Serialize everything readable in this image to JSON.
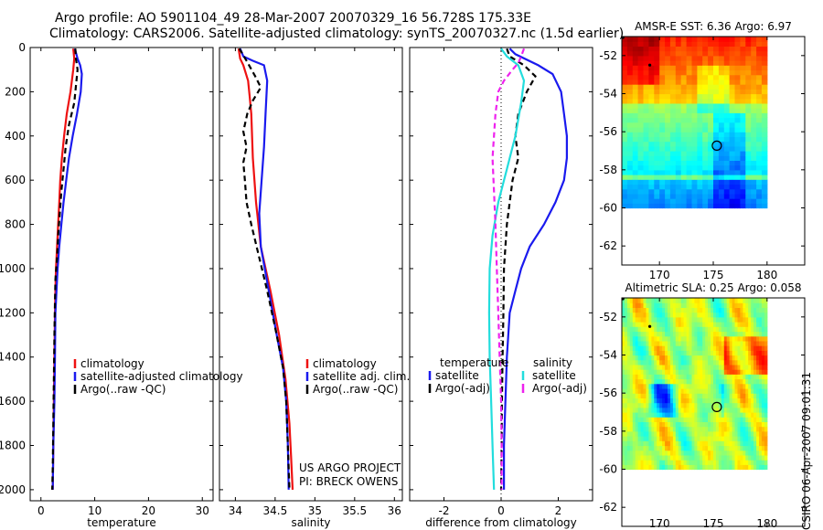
{
  "header": {
    "line1": "Argo profile: AO 5901104_49 28-Mar-2007 20070329_16 56.728S 175.33E",
    "line2": "Climatology: CARS2006. Satellite-adjusted climatology: synTS_20070327.nc (1.5d earlier)"
  },
  "side_label": "CSIRO 06-Apr-2007 09:01:31",
  "credit": [
    "US ARGO PROJECT",
    "PI: BRECK OWENS"
  ],
  "colors": {
    "climatology": "#ee1111",
    "satellite": "#1a1aee",
    "argo": "#000000",
    "satellite_diff": "#22dddd",
    "argo_sal_diff": "#ee22ee"
  },
  "chart_data": [
    {
      "type": "line",
      "id": "temperature",
      "xlabel": "temperature",
      "ylabel": "",
      "xlim": [
        -2,
        32
      ],
      "ylim": [
        2050,
        0
      ],
      "xticks": [
        0,
        10,
        20,
        30
      ],
      "yticks": [
        0,
        200,
        400,
        600,
        800,
        1000,
        1200,
        1400,
        1600,
        1800,
        2000
      ],
      "legend": [
        "climatology",
        "satellite-adjusted climatology",
        "Argo(..raw -QC)"
      ],
      "series": [
        {
          "name": "climatology",
          "color": "#ee1111",
          "dash": "",
          "points": [
            [
              6.0,
              5
            ],
            [
              6.2,
              50
            ],
            [
              6.0,
              100
            ],
            [
              5.5,
              200
            ],
            [
              4.8,
              300
            ],
            [
              4.3,
              400
            ],
            [
              3.9,
              500
            ],
            [
              3.6,
              600
            ],
            [
              3.4,
              700
            ],
            [
              3.2,
              800
            ],
            [
              3.0,
              900
            ],
            [
              2.8,
              1000
            ],
            [
              2.7,
              1100
            ],
            [
              2.6,
              1200
            ],
            [
              2.5,
              1400
            ],
            [
              2.4,
              1600
            ],
            [
              2.3,
              1800
            ],
            [
              2.2,
              2000
            ]
          ]
        },
        {
          "name": "satellite-adjusted climatology",
          "color": "#1a1aee",
          "dash": "",
          "points": [
            [
              6.3,
              5
            ],
            [
              6.8,
              50
            ],
            [
              7.3,
              80
            ],
            [
              7.6,
              120
            ],
            [
              7.4,
              200
            ],
            [
              6.7,
              300
            ],
            [
              5.9,
              400
            ],
            [
              5.2,
              500
            ],
            [
              4.7,
              600
            ],
            [
              4.2,
              700
            ],
            [
              3.8,
              800
            ],
            [
              3.4,
              900
            ],
            [
              3.1,
              1000
            ],
            [
              2.9,
              1100
            ],
            [
              2.7,
              1200
            ],
            [
              2.6,
              1400
            ],
            [
              2.5,
              1600
            ],
            [
              2.3,
              1800
            ],
            [
              2.2,
              2000
            ]
          ]
        },
        {
          "name": "Argo(..raw -QC)",
          "color": "#000000",
          "dash": "6,4",
          "points": [
            [
              6.4,
              5
            ],
            [
              6.5,
              50
            ],
            [
              6.8,
              100
            ],
            [
              6.6,
              150
            ],
            [
              6.2,
              250
            ],
            [
              5.2,
              350
            ],
            [
              4.6,
              450
            ],
            [
              4.2,
              550
            ],
            [
              3.8,
              650
            ],
            [
              3.5,
              750
            ],
            [
              3.2,
              850
            ],
            [
              3.0,
              950
            ],
            [
              2.7,
              1050
            ],
            [
              2.6,
              1150
            ],
            [
              2.5,
              1300
            ],
            [
              2.4,
              1500
            ],
            [
              2.3,
              1700
            ],
            [
              2.2,
              1900
            ],
            [
              2.1,
              2000
            ]
          ]
        }
      ]
    },
    {
      "type": "line",
      "id": "salinity",
      "xlabel": "salinity",
      "xlim": [
        33.8,
        36.1
      ],
      "ylim": [
        2050,
        0
      ],
      "xticks": [
        34,
        34.5,
        35,
        35.5,
        36
      ],
      "xticklabels": [
        "34",
        "34.5",
        "35",
        "35.5",
        "36"
      ],
      "legend": [
        "climatology",
        "satellite adj. clim.",
        "Argo(..raw -QC)"
      ],
      "series": [
        {
          "name": "climatology",
          "color": "#ee1111",
          "dash": "",
          "points": [
            [
              34.04,
              5
            ],
            [
              34.06,
              50
            ],
            [
              34.1,
              80
            ],
            [
              34.16,
              150
            ],
            [
              34.18,
              220
            ],
            [
              34.2,
              300
            ],
            [
              34.22,
              500
            ],
            [
              34.26,
              700
            ],
            [
              34.32,
              900
            ],
            [
              34.44,
              1100
            ],
            [
              34.55,
              1300
            ],
            [
              34.63,
              1500
            ],
            [
              34.68,
              1700
            ],
            [
              34.7,
              1850
            ],
            [
              34.72,
              2000
            ]
          ]
        },
        {
          "name": "satellite adj. clim.",
          "color": "#1a1aee",
          "dash": "",
          "points": [
            [
              34.06,
              5
            ],
            [
              34.1,
              40
            ],
            [
              34.22,
              60
            ],
            [
              34.36,
              80
            ],
            [
              34.4,
              150
            ],
            [
              34.38,
              300
            ],
            [
              34.36,
              450
            ],
            [
              34.33,
              600
            ],
            [
              34.3,
              750
            ],
            [
              34.32,
              900
            ],
            [
              34.42,
              1100
            ],
            [
              34.52,
              1300
            ],
            [
              34.6,
              1450
            ],
            [
              34.64,
              1600
            ],
            [
              34.66,
              1800
            ],
            [
              34.67,
              2000
            ]
          ]
        },
        {
          "name": "Argo(..raw -QC)",
          "color": "#000000",
          "dash": "6,4",
          "points": [
            [
              34.05,
              5
            ],
            [
              34.14,
              60
            ],
            [
              34.25,
              130
            ],
            [
              34.32,
              180
            ],
            [
              34.22,
              240
            ],
            [
              34.15,
              300
            ],
            [
              34.1,
              380
            ],
            [
              34.14,
              450
            ],
            [
              34.1,
              520
            ],
            [
              34.12,
              600
            ],
            [
              34.14,
              700
            ],
            [
              34.2,
              800
            ],
            [
              34.3,
              950
            ],
            [
              34.4,
              1100
            ],
            [
              34.52,
              1300
            ],
            [
              34.6,
              1450
            ],
            [
              34.64,
              1600
            ],
            [
              34.66,
              1800
            ],
            [
              34.68,
              2000
            ]
          ]
        }
      ]
    },
    {
      "type": "line",
      "id": "difference",
      "xlabel": "difference from climatology",
      "xlim": [
        -3.2,
        3.2
      ],
      "ylim": [
        2050,
        0
      ],
      "xticks": [
        -2,
        0,
        2
      ],
      "xticklabels": [
        "-2",
        "0",
        "2"
      ],
      "legend_temperature": {
        "title": "temperature",
        "items": [
          "satellite",
          "Argo(-adj)"
        ]
      },
      "legend_salinity": {
        "title": "salinity",
        "items": [
          "satellite",
          "Argo(-adj)"
        ]
      },
      "series": [
        {
          "name": "temperature satellite",
          "color": "#1a1aee",
          "dash": "",
          "points": [
            [
              0.3,
              5
            ],
            [
              0.5,
              30
            ],
            [
              1.3,
              80
            ],
            [
              1.8,
              120
            ],
            [
              2.1,
              200
            ],
            [
              2.2,
              300
            ],
            [
              2.3,
              400
            ],
            [
              2.3,
              500
            ],
            [
              2.2,
              600
            ],
            [
              1.9,
              700
            ],
            [
              1.5,
              800
            ],
            [
              1.0,
              900
            ],
            [
              0.7,
              1000
            ],
            [
              0.5,
              1100
            ],
            [
              0.3,
              1200
            ],
            [
              0.2,
              1400
            ],
            [
              0.15,
              1600
            ],
            [
              0.1,
              1800
            ],
            [
              0.1,
              2000
            ]
          ]
        },
        {
          "name": "temperature Argo(-adj)",
          "color": "#000000",
          "dash": "6,4",
          "points": [
            [
              0.2,
              5
            ],
            [
              0.3,
              40
            ],
            [
              0.8,
              80
            ],
            [
              1.2,
              130
            ],
            [
              0.9,
              200
            ],
            [
              0.6,
              300
            ],
            [
              0.5,
              400
            ],
            [
              0.6,
              500
            ],
            [
              0.4,
              600
            ],
            [
              0.3,
              700
            ],
            [
              0.2,
              800
            ],
            [
              0.15,
              900
            ],
            [
              0.1,
              1000
            ],
            [
              0.08,
              1200
            ],
            [
              0.05,
              1400
            ],
            [
              0.03,
              1600
            ],
            [
              0.02,
              1800
            ],
            [
              0.0,
              2000
            ]
          ]
        },
        {
          "name": "salinity satellite",
          "color": "#22dddd",
          "dash": "",
          "points": [
            [
              0.0,
              5
            ],
            [
              0.2,
              40
            ],
            [
              0.6,
              80
            ],
            [
              0.8,
              150
            ],
            [
              0.7,
              250
            ],
            [
              0.5,
              400
            ],
            [
              0.2,
              550
            ],
            [
              -0.1,
              700
            ],
            [
              -0.3,
              850
            ],
            [
              -0.4,
              1000
            ],
            [
              -0.42,
              1200
            ],
            [
              -0.4,
              1400
            ],
            [
              -0.35,
              1600
            ],
            [
              -0.3,
              1800
            ],
            [
              -0.25,
              2000
            ]
          ]
        },
        {
          "name": "salinity Argo(-adj)",
          "color": "#ee22ee",
          "dash": "6,4",
          "points": [
            [
              0.8,
              5
            ],
            [
              0.7,
              40
            ],
            [
              0.6,
              70
            ],
            [
              0.4,
              100
            ],
            [
              0.1,
              150
            ],
            [
              -0.1,
              200
            ],
            [
              -0.2,
              300
            ],
            [
              -0.3,
              500
            ],
            [
              -0.25,
              650
            ],
            [
              -0.2,
              800
            ],
            [
              -0.15,
              1000
            ],
            [
              -0.1,
              1200
            ],
            [
              -0.05,
              1400
            ],
            [
              0.0,
              1600
            ],
            [
              0.02,
              1800
            ],
            [
              0.02,
              2000
            ]
          ]
        }
      ]
    },
    {
      "type": "heatmap",
      "id": "sst_map",
      "title": "AMSR-E SST: 6.36  Argo: 6.97",
      "xlim": [
        166.5,
        183.5
      ],
      "ylim": [
        -63,
        -51
      ],
      "data_xrange": [
        166.5,
        180
      ],
      "data_yrange": [
        -60,
        -51
      ],
      "xticks": [
        170,
        175,
        180
      ],
      "yticks": [
        -52,
        -54,
        -56,
        -58,
        -60,
        -62
      ],
      "float_position": [
        175.33,
        -56.73
      ],
      "prev_positions": [
        [
          169.1,
          -52.5
        ],
        [
          166.6,
          -51.05
        ]
      ],
      "note": "SST field, warmer north (yellow/orange), cooler south (green/blue)"
    },
    {
      "type": "heatmap",
      "id": "sla_map",
      "title": "Altimetric SLA: 0.25  Argo: 0.058",
      "xlim": [
        166.5,
        183.5
      ],
      "ylim": [
        -63,
        -51
      ],
      "data_xrange": [
        166.5,
        180
      ],
      "data_yrange": [
        -60,
        -51
      ],
      "xticks": [
        170,
        175,
        180
      ],
      "yticks": [
        -52,
        -54,
        -56,
        -58,
        -60,
        -62
      ],
      "float_position": [
        175.33,
        -56.73
      ],
      "prev_positions": [
        [
          169.1,
          -52.5
        ],
        [
          166.6,
          -51.05
        ]
      ]
    }
  ]
}
